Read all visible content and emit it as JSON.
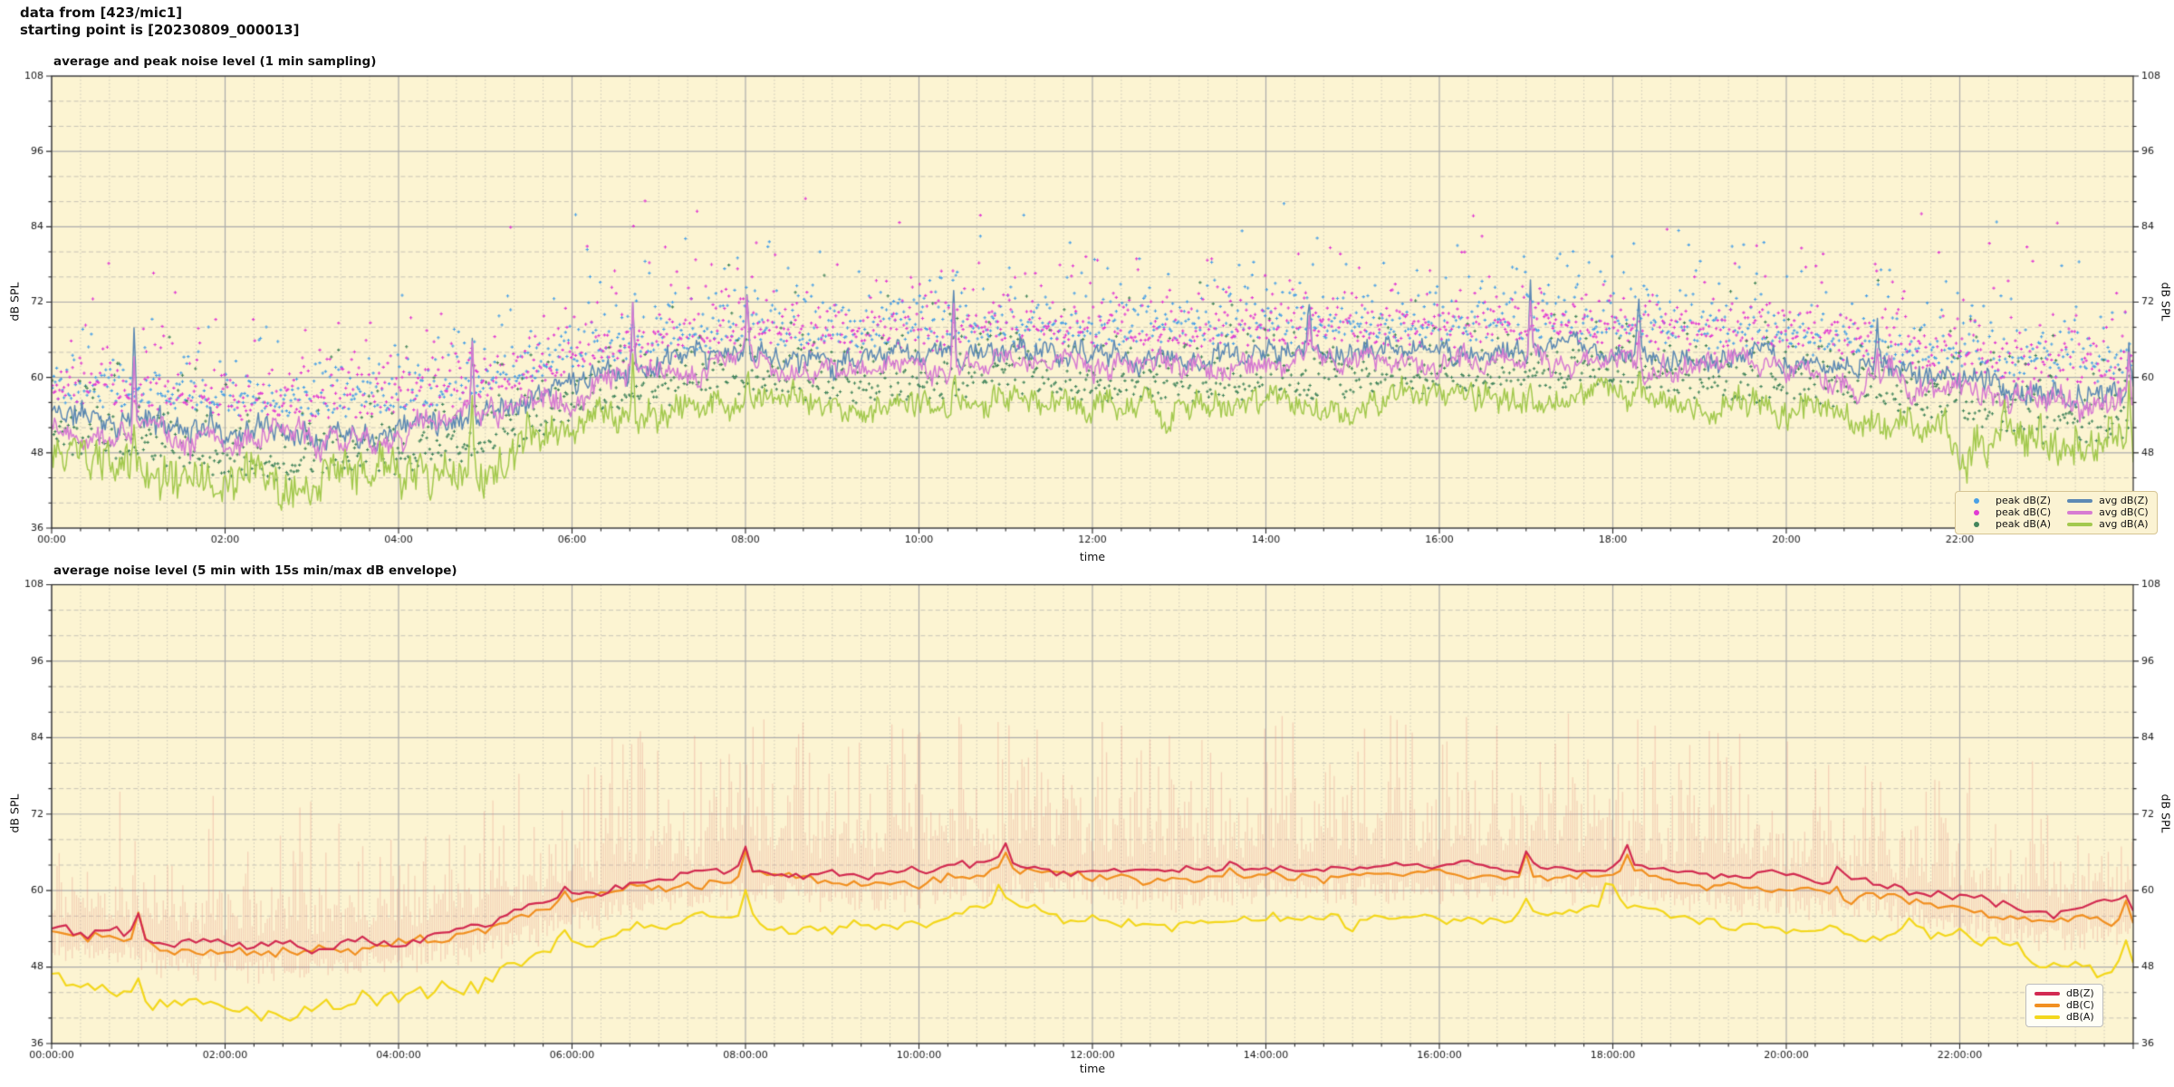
{
  "header": {
    "line1": "data from [423/mic1]",
    "line2": "starting point is [20230809_000013]"
  },
  "figure": {
    "bg": "#ffffff",
    "plot_bg": "#fcf4d2",
    "grid_major": "#ababab",
    "grid_minor": "#c8c4b6",
    "spine": "#2a2a2a",
    "tick_color": "#2a2a2a",
    "label_color": "#1a1a1a"
  },
  "chart_data": [
    {
      "type": "scatter+line",
      "title": "average and peak noise level (1 min sampling)",
      "xlabel": "time",
      "ylabel": "dB SPL",
      "ylim": [
        36,
        108
      ],
      "yticks": [
        36,
        48,
        60,
        72,
        84,
        96,
        108
      ],
      "y_minor_step": 4,
      "xlim": [
        0,
        24
      ],
      "xtick_hours": [
        0,
        2,
        4,
        6,
        8,
        10,
        12,
        14,
        16,
        18,
        20,
        22
      ],
      "xtick_labels": [
        "00:00",
        "02:00",
        "04:00",
        "06:00",
        "08:00",
        "10:00",
        "12:00",
        "14:00",
        "16:00",
        "18:00",
        "20:00",
        "22:00"
      ],
      "x_minor_hours": 0.33333,
      "grid": true,
      "legend": {
        "position": "lower right",
        "columns": 2,
        "entries": [
          {
            "label": "peak dB(Z)",
            "swatch": "marker",
            "color": "#4aa0e6"
          },
          {
            "label": "peak dB(C)",
            "swatch": "marker",
            "color": "#e13bd3"
          },
          {
            "label": "peak dB(A)",
            "swatch": "marker",
            "color": "#43855c"
          },
          {
            "label": "avg dB(Z)",
            "swatch": "line",
            "color": "#5d89b4"
          },
          {
            "label": "avg dB(C)",
            "swatch": "line",
            "color": "#d77bd2"
          },
          {
            "label": "avg dB(A)",
            "swatch": "line",
            "color": "#a3c94e"
          }
        ]
      },
      "series": [
        {
          "kind": "scatter",
          "name": "peak dB(Z)",
          "color": "#4aa0e6",
          "base_series": "avg dB(Z)",
          "per_hour": 60,
          "offset": 2.5,
          "spread": 3.0,
          "tail": 3.6,
          "tail_max": 24,
          "seed": 101
        },
        {
          "kind": "scatter",
          "name": "peak dB(C)",
          "color": "#e13bd3",
          "base_series": "avg dB(Z)",
          "per_hour": 60,
          "offset": 2.2,
          "spread": 3.2,
          "tail": 3.9,
          "tail_max": 24,
          "seed": 202
        },
        {
          "kind": "scatter",
          "name": "peak dB(A)",
          "color": "#43855c",
          "base_series": "avg dB(A)",
          "per_hour": 60,
          "offset": 2.0,
          "spread": 3.0,
          "tail": 3.4,
          "tail_max": 22,
          "seed": 303
        },
        {
          "kind": "line",
          "name": "avg dB(Z)",
          "color": "#5d89b4",
          "width": 1.5,
          "per_hour": 60,
          "anchors_hourly": [
            54.5,
            53,
            52,
            52,
            53,
            55,
            59,
            62,
            63.5,
            63,
            63,
            64,
            63.5,
            63,
            64,
            64,
            64,
            64.5,
            64,
            63,
            62.5,
            61.5,
            59.5,
            57.5,
            58
          ],
          "white": 1.2,
          "walk_gain": 1.6,
          "walk_decay": 0.88,
          "night_boost": 0.2,
          "spike_w": 0.02,
          "spikes": [
            [
              0.95,
              14
            ],
            [
              4.85,
              13
            ],
            [
              6.7,
              11
            ],
            [
              8.02,
              9
            ],
            [
              10.4,
              10
            ],
            [
              14.5,
              7
            ],
            [
              17.05,
              11
            ],
            [
              18.3,
              8
            ],
            [
              21.05,
              7
            ],
            [
              23.95,
              7
            ]
          ],
          "seed": 11
        },
        {
          "kind": "line",
          "name": "avg dB(C)",
          "color": "#d77bd2",
          "width": 1.5,
          "per_hour": 60,
          "anchors_hourly": [
            53,
            51.5,
            50.5,
            50.5,
            51.5,
            53.5,
            57.5,
            60.5,
            62,
            61.5,
            61.5,
            62.5,
            62,
            61.5,
            62.5,
            62.5,
            62.5,
            63,
            62.5,
            61.5,
            61,
            60,
            58,
            55.5,
            56.5
          ],
          "white": 1.2,
          "walk_gain": 1.7,
          "walk_decay": 0.88,
          "night_boost": 0.2,
          "spike_w": 0.02,
          "spikes": [
            [
              0.95,
              13
            ],
            [
              4.85,
              12
            ],
            [
              6.7,
              10
            ],
            [
              8.02,
              9
            ],
            [
              10.4,
              9
            ],
            [
              14.5,
              6
            ],
            [
              17.05,
              10
            ],
            [
              18.3,
              7
            ],
            [
              21.05,
              6
            ],
            [
              23.95,
              8
            ]
          ],
          "seed": 22
        },
        {
          "kind": "line",
          "name": "avg dB(A)",
          "color": "#a3c94e",
          "width": 1.5,
          "per_hour": 60,
          "anchors_hourly": [
            47.5,
            45,
            43,
            42.5,
            43.5,
            46,
            51.5,
            54.5,
            56.5,
            55,
            55.5,
            57,
            55.5,
            55,
            55.5,
            56,
            56.5,
            56,
            57.5,
            55.5,
            55,
            54,
            52,
            48.5,
            49
          ],
          "white": 1.5,
          "walk_gain": 2.0,
          "walk_decay": 0.85,
          "night_boost": 0.6,
          "spike_w": 0.02,
          "spikes": [
            [
              0.95,
              8
            ],
            [
              4.85,
              11
            ],
            [
              6.7,
              9
            ],
            [
              8.02,
              6
            ],
            [
              10.4,
              5
            ],
            [
              17.05,
              5
            ],
            [
              18.3,
              4
            ],
            [
              23.95,
              10
            ]
          ],
          "seed": 33
        }
      ]
    },
    {
      "type": "line+envelope",
      "title": "average noise level (5 min with 15s min/max dB envelope)",
      "xlabel": "time",
      "ylabel": "dB SPL",
      "ylim": [
        36,
        108
      ],
      "yticks": [
        36,
        48,
        60,
        72,
        84,
        96,
        108
      ],
      "y_minor_step": 4,
      "xlim": [
        0,
        24
      ],
      "xtick_hours": [
        0,
        2,
        4,
        6,
        8,
        10,
        12,
        14,
        16,
        18,
        20,
        22
      ],
      "xtick_labels": [
        "00:00:00",
        "02:00:00",
        "04:00:00",
        "06:00:00",
        "08:00:00",
        "10:00:00",
        "12:00:00",
        "14:00:00",
        "16:00:00",
        "18:00:00",
        "20:00:00",
        "22:00:00"
      ],
      "x_minor_hours": 0.33333,
      "grid": true,
      "legend": {
        "position": "lower right",
        "columns": 1,
        "entries": [
          {
            "label": "dB(Z)",
            "swatch": "line",
            "color": "#d22a50"
          },
          {
            "label": "dB(C)",
            "swatch": "line",
            "color": "#f18f1f"
          },
          {
            "label": "dB(A)",
            "swatch": "line",
            "color": "#f3d71b"
          }
        ]
      },
      "series": [
        {
          "kind": "envelope",
          "name": "15s min/max dB envelope",
          "color": "rgba(231,142,131,0.33)",
          "base_series": "dB(Z)",
          "per_hour": 40,
          "wiggle": 1.2,
          "up_base": 1.5,
          "up_tail": 4.3,
          "up_max": 21,
          "down_base": 2.2,
          "down_rand": 3.4,
          "day_boost": 0.8,
          "events": [
            [
              8.0,
              16
            ],
            [
              8.6,
              12
            ],
            [
              14.7,
              12
            ],
            [
              17.3,
              14
            ],
            [
              18.9,
              13
            ]
          ],
          "event_w": 0.05,
          "seed": 77
        },
        {
          "kind": "line",
          "name": "dB(A)",
          "color": "#f3d71b",
          "width": 2.2,
          "per_hour": 12,
          "anchors_hourly": [
            46.5,
            44.5,
            41.5,
            41.5,
            43.5,
            46,
            51.5,
            54.5,
            56,
            54.5,
            55,
            57.5,
            55.5,
            54.5,
            55.5,
            55.5,
            56,
            55.5,
            57.5,
            55,
            54.5,
            53.5,
            51.5,
            48.5,
            48
          ],
          "white": 0.5,
          "walk_gain": 1.4,
          "walk_decay": 0.78,
          "night_boost": 0.5,
          "spike_w": 0.07,
          "spikes": [
            [
              1.0,
              3
            ],
            [
              5.9,
              2
            ],
            [
              8.0,
              5
            ],
            [
              10.9,
              3.5
            ],
            [
              14.8,
              2
            ],
            [
              17.0,
              2.5
            ],
            [
              17.95,
              5
            ],
            [
              21.4,
              3
            ],
            [
              23.9,
              3.5
            ]
          ],
          "seed": 55
        },
        {
          "kind": "line",
          "name": "dB(C)",
          "color": "#f18f1f",
          "width": 2.2,
          "per_hour": 12,
          "anchors_hourly": [
            53.5,
            51.5,
            50,
            50,
            51.5,
            53.5,
            58,
            61,
            62,
            61.5,
            61.5,
            63,
            62,
            61.5,
            62.5,
            62.5,
            62.5,
            63,
            62.5,
            61,
            60.5,
            59.5,
            57,
            55,
            56
          ],
          "white": 0.4,
          "walk_gain": 1.1,
          "walk_decay": 0.8,
          "night_boost": 0.3,
          "spike_w": 0.05,
          "spikes": [
            [
              1.0,
              4
            ],
            [
              5.9,
              2.5
            ],
            [
              8.0,
              4
            ],
            [
              11.0,
              2.5
            ],
            [
              13.6,
              2
            ],
            [
              17.0,
              3
            ],
            [
              18.15,
              3
            ],
            [
              20.6,
              2
            ],
            [
              23.9,
              3
            ]
          ],
          "seed": 44
        },
        {
          "kind": "line",
          "name": "dB(Z)",
          "color": "#d22a50",
          "width": 2.2,
          "per_hour": 12,
          "anchors_hourly": [
            55,
            53,
            51.8,
            51.8,
            53,
            55,
            59.5,
            62.5,
            63.5,
            63,
            63,
            64.5,
            63.5,
            63,
            64,
            64,
            64,
            64.5,
            64,
            62.5,
            62,
            61,
            58.5,
            56.5,
            57.5
          ],
          "white": 0.4,
          "walk_gain": 1.0,
          "walk_decay": 0.8,
          "night_boost": 0.3,
          "spike_w": 0.05,
          "spikes": [
            [
              1.0,
              4
            ],
            [
              5.9,
              2.5
            ],
            [
              8.0,
              3.5
            ],
            [
              11.0,
              2.5
            ],
            [
              13.6,
              2
            ],
            [
              17.0,
              3
            ],
            [
              18.15,
              3
            ],
            [
              20.6,
              2
            ],
            [
              23.9,
              2.5
            ]
          ],
          "seed": 66
        }
      ]
    }
  ]
}
